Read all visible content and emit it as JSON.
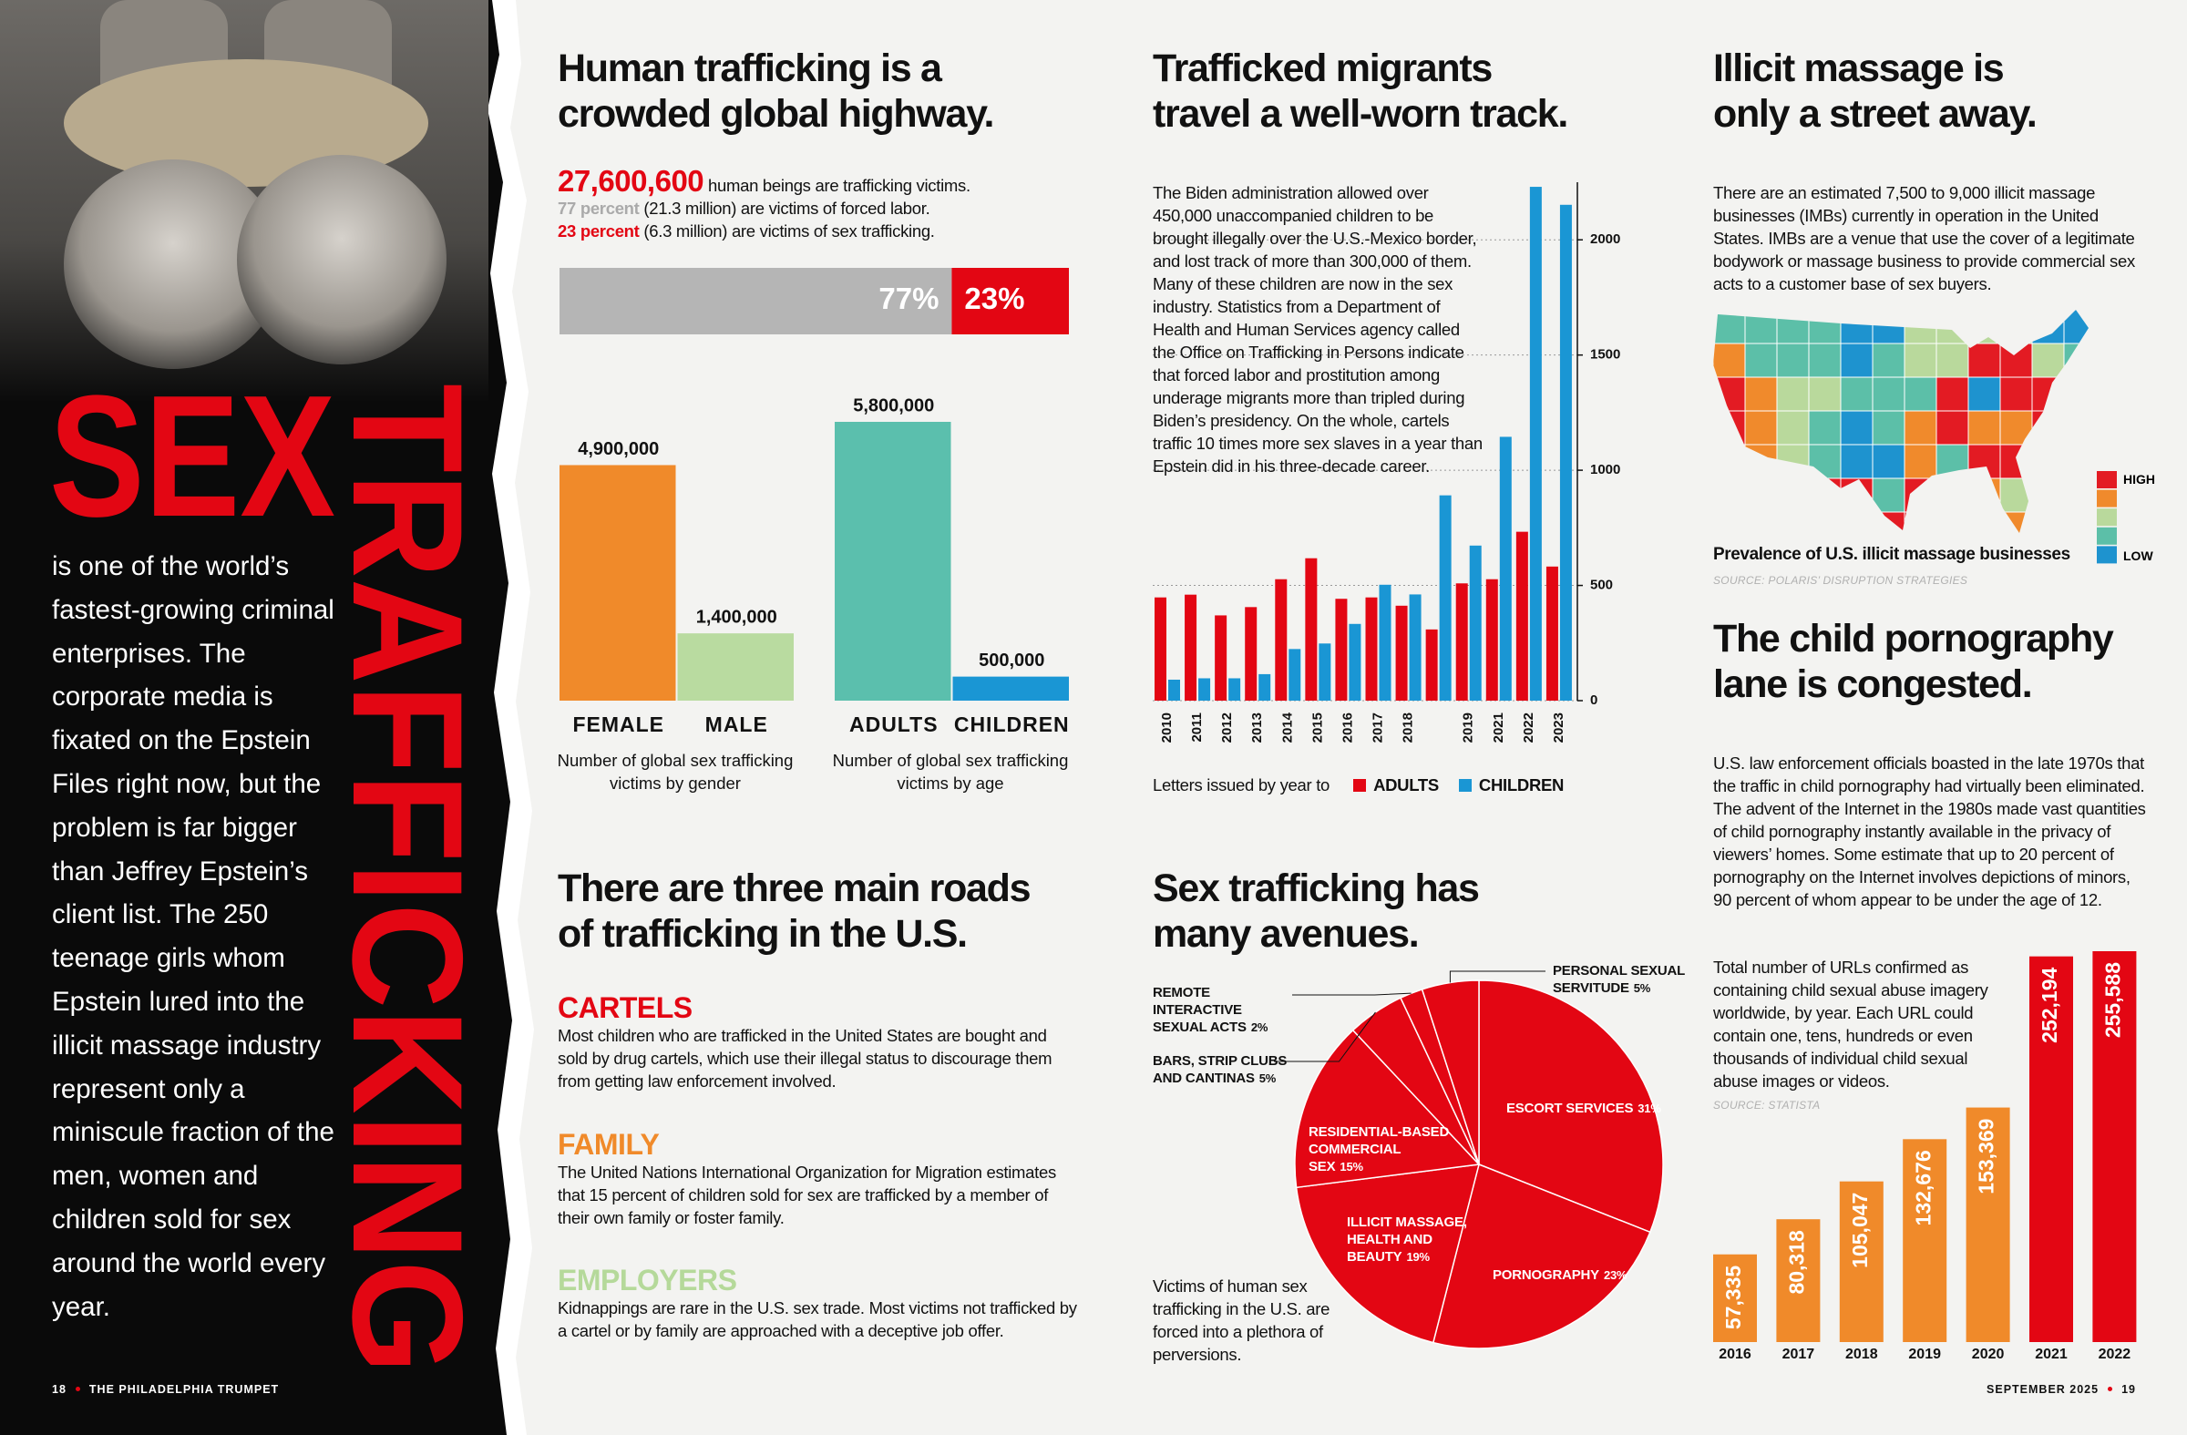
{
  "left": {
    "title_1": "SEX",
    "title_2": "TRAFFICKING",
    "body": "is one of the world’s fastest-growing criminal enterprises. The corporate media is fixated on the Epstein Files right now, but the problem is far bigger than Jeffrey Epstein’s client list. The 250 teenage girls whom Epstein lured into the illicit massage industry represent only a miniscule fraction of the men, women and children sold for sex around the world every year.",
    "folio": "18",
    "publication": "THE PHILADELPHIA TRUMPET"
  },
  "highway": {
    "heading": [
      "Human trafficking is a",
      "crowded global highway."
    ],
    "stat": "27,600,600",
    "stat_text": "human beings are trafficking victims.",
    "forced_pct": "77 percent",
    "forced_text": "(21.3 million) are victims of forced labor.",
    "sex_pct": "23 percent",
    "sex_text": "(6.3 million) are victims of sex trafficking."
  },
  "roads": {
    "heading": [
      "There are three main roads",
      "of trafficking in the U.S."
    ],
    "items": [
      {
        "title": "CARTELS",
        "body": "Most children who are trafficked in the United States are bought and sold by drug cartels, which use their illegal status to discourage them from getting law enforcement involved."
      },
      {
        "title": "FAMILY",
        "body": "The United Nations International Organization for Migration estimates that 15 percent of children sold for sex are trafficked by a member of their own family or foster family."
      },
      {
        "title": "EMPLOYERS",
        "body": "Kidnappings are rare in the U.S. sex trade. Most victims not trafficked by a cartel or by family are approached with a deceptive job offer."
      }
    ]
  },
  "migrants": {
    "heading": [
      "Trafficked migrants",
      "travel a well-worn track."
    ],
    "body": "The Biden administration allowed over 450,000 unaccompanied children to be brought illegally over the U.S.-Mexico border, and lost track of more than 300,000 of them. Many of these children are now in the sex industry. Statistics from a Department of Health and Human Services agency called the Office on Trafficking in Persons indicate that forced labor and prostitution among underage migrants more than tripled during Biden’s presidency. On the whole, cartels traffic 10 times more sex slaves in a year than Epstein did in his three-decade career."
  },
  "avenues": {
    "heading": [
      "Sex trafficking has",
      "many avenues."
    ]
  },
  "massage": {
    "heading": [
      "Illicit massage is",
      "only a street away."
    ],
    "body": "There are an estimated 7,500 to 9,000 illicit massage businesses (IMBs) currently in operation in the United States. IMBs are a venue that use the cover of a legitimate bodywork or massage business to provide commercial sex acts to a customer base of sex buyers.",
    "map_caption": "Prevalence of U.S. illicit massage businesses",
    "source": "SOURCE: POLARIS’ DISRUPTION STRATEGIES",
    "legend_high": "HIGH",
    "legend_low": "LOW"
  },
  "child": {
    "heading": [
      "The child pornography",
      "lane is congested."
    ],
    "body": "U.S. law enforcement officials boasted in the late 1970s that the traffic in child pornography had virtually been eliminated. The advent of the Internet in the 1980s made vast quantities of child pornography instantly available in the privacy of viewers’ homes. Some estimate that up to 20 percent of pornography on the Internet involves depictions of minors, 90 percent of whom appear to be under the age of 12."
  },
  "footer_right": {
    "date": "SEPTEMBER 2025",
    "folio": "19"
  },
  "chart_data": [
    {
      "type": "bar",
      "orientation": "horizontal",
      "stacked": true,
      "values": [
        77,
        23
      ],
      "value_labels": [
        "77%",
        "23%"
      ],
      "colors": [
        "#b5b5b5",
        "#e30613"
      ]
    },
    {
      "type": "bar",
      "categories": [
        "FEMALE",
        "MALE"
      ],
      "values": [
        4900000,
        1400000
      ],
      "value_labels": [
        "4,900,000",
        "1,400,000"
      ],
      "colors": [
        "#f08a2a",
        "#b9dba0"
      ],
      "caption": "Number of global sex trafficking victims by gender"
    },
    {
      "type": "bar",
      "categories": [
        "ADULTS",
        "CHILDREN"
      ],
      "values": [
        5800000,
        500000
      ],
      "value_labels": [
        "5,800,000",
        "500,000"
      ],
      "colors": [
        "#5bbfad",
        "#1a96d4"
      ],
      "caption": "Number of global sex trafficking victims by age"
    },
    {
      "type": "grouped_bar",
      "categories": [
        "2010",
        "2011",
        "2012",
        "2013",
        "2014",
        "2015",
        "2016",
        "2017",
        "2018",
        null,
        "2019",
        "2021",
        "2022",
        "2023"
      ],
      "series": [
        {
          "name": "ADULTS",
          "color": "#e30613",
          "values": [
            448,
            460,
            370,
            406,
            527,
            618,
            442,
            448,
            412,
            309,
            509,
            527,
            733,
            582
          ]
        },
        {
          "name": "CHILDREN",
          "color": "#1a96d4",
          "values": [
            91,
            97,
            97,
            115,
            224,
            248,
            333,
            503,
            461,
            891,
            673,
            1145,
            2230,
            2152
          ]
        }
      ],
      "ylim": [
        0,
        2250
      ],
      "yticks": [
        0,
        500,
        1000,
        1500,
        2000
      ],
      "y_axis_side": "right",
      "grid": true,
      "legend_title": "Letters issued by year to"
    },
    {
      "type": "pie",
      "labels": [
        "ESCORT SERVICES",
        "PORNOGRAPHY",
        "ILLICIT MASSAGE, HEALTH AND BEAUTY",
        "RESIDENTIAL-BASED COMMERCIAL SEX",
        "BARS, STRIP CLUBS AND CANTINAS",
        "REMOTE INTERACTIVE SEXUAL ACTS",
        "PERSONAL SEXUAL SERVITUDE"
      ],
      "values": [
        31,
        23,
        19,
        15,
        5,
        2,
        5
      ],
      "value_labels": [
        "31%",
        "23%",
        "19%",
        "15%",
        "5%",
        "2%",
        "5%"
      ],
      "color": "#e30613",
      "caption": "Victims of human sex trafficking in the U.S. are forced into a plethora of perversions."
    },
    {
      "type": "bar",
      "categories": [
        "2016",
        "2017",
        "2018",
        "2019",
        "2020",
        "2021",
        "2022"
      ],
      "values": [
        57335,
        80318,
        105047,
        132676,
        153369,
        252194,
        255588
      ],
      "value_labels": [
        "57,335",
        "80,318",
        "105,047",
        "132,676",
        "153,369",
        "252,194",
        "255,588"
      ],
      "colors": [
        "#f08a2a",
        "#f08a2a",
        "#f08a2a",
        "#f08a2a",
        "#f08a2a",
        "#e30613",
        "#e30613"
      ],
      "caption": "Total number of URLs confirmed as containing child sexual abuse imagery worldwide, by year. Each URL could contain one, tens, hundreds or even thousands of individual child sexual abuse images or videos.",
      "source": "SOURCE: STATISTA"
    }
  ]
}
